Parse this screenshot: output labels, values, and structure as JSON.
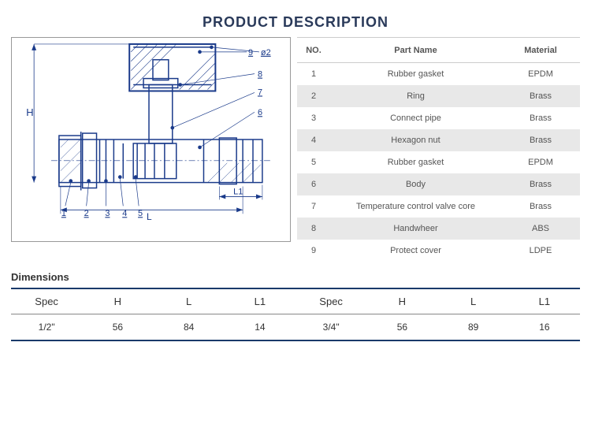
{
  "title": "PRODUCT DESCRIPTION",
  "parts_table": {
    "headers": {
      "no": "NO.",
      "part": "Part Name",
      "material": "Material"
    },
    "rows": [
      {
        "no": "1",
        "part": "Rubber gasket",
        "material": "EPDM"
      },
      {
        "no": "2",
        "part": "Ring",
        "material": "Brass"
      },
      {
        "no": "3",
        "part": "Connect pipe",
        "material": "Brass"
      },
      {
        "no": "4",
        "part": "Hexagon nut",
        "material": "Brass"
      },
      {
        "no": "5",
        "part": "Rubber gasket",
        "material": "EPDM"
      },
      {
        "no": "6",
        "part": "Body",
        "material": "Brass"
      },
      {
        "no": "7",
        "part": "Temperature control valve core",
        "material": "Brass"
      },
      {
        "no": "8",
        "part": "Handwheer",
        "material": "ABS"
      },
      {
        "no": "9",
        "part": "Protect cover",
        "material": "LDPE"
      }
    ]
  },
  "dimensions": {
    "title": "Dimensions",
    "headers": [
      "Spec",
      "H",
      "L",
      "L1",
      "Spec",
      "H",
      "L",
      "L1"
    ],
    "row": [
      "1/2\"",
      "56",
      "84",
      "14",
      "3/4\"",
      "56",
      "89",
      "16"
    ]
  },
  "diagram": {
    "stroke": "#1a3a8a",
    "thin": "#2a4a9a",
    "callouts": [
      "1",
      "2",
      "3",
      "4",
      "5",
      "6",
      "7",
      "8",
      "9",
      "ø2"
    ],
    "dim_labels": {
      "H": "H",
      "L": "L",
      "L1": "L1"
    }
  }
}
